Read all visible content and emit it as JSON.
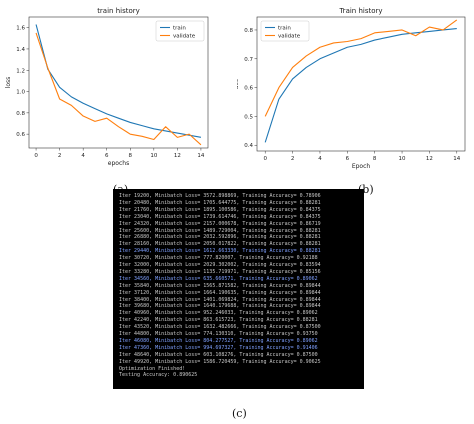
{
  "panels": {
    "a": "(a)",
    "b": "(b)",
    "c": "(c)"
  },
  "colors": {
    "train": "#1f77b4",
    "validate": "#ff7f0e",
    "terminal_bg": "#000000",
    "terminal_text": "#c8c8c8",
    "terminal_highlight": "#7fa0ff"
  },
  "chart_data": [
    {
      "type": "line",
      "title": "train history",
      "xlabel": "epochs",
      "ylabel": "loss",
      "xlim": [
        -0.6,
        14.6
      ],
      "ylim": [
        0.47,
        1.7
      ],
      "xticks": [
        0,
        2,
        4,
        6,
        8,
        10,
        12,
        14
      ],
      "yticks": [
        0.6,
        0.8,
        1.0,
        1.2,
        1.4,
        1.6
      ],
      "ytick_labels": [
        "0.6",
        "0.8",
        "1.0",
        "1.2",
        "1.4",
        "1.6"
      ],
      "legend_position": "top-right",
      "x": [
        0,
        1,
        2,
        3,
        4,
        5,
        6,
        7,
        8,
        9,
        10,
        11,
        12,
        13,
        14
      ],
      "series": [
        {
          "name": "train",
          "values": [
            1.63,
            1.21,
            1.04,
            0.95,
            0.89,
            0.84,
            0.79,
            0.75,
            0.71,
            0.68,
            0.65,
            0.63,
            0.61,
            0.59,
            0.57
          ]
        },
        {
          "name": "validate",
          "values": [
            1.55,
            1.22,
            0.93,
            0.87,
            0.77,
            0.72,
            0.75,
            0.67,
            0.6,
            0.58,
            0.55,
            0.67,
            0.57,
            0.6,
            0.5
          ]
        }
      ]
    },
    {
      "type": "line",
      "title": "Train history",
      "xlabel": "Epoch",
      "ylabel": "acc",
      "xlim": [
        -0.6,
        14.6
      ],
      "ylim": [
        0.38,
        0.845
      ],
      "xticks": [
        0,
        2,
        4,
        6,
        8,
        10,
        12,
        14
      ],
      "yticks": [
        0.4,
        0.5,
        0.6,
        0.7,
        0.8
      ],
      "ytick_labels": [
        "0.4",
        "0.5",
        "0.6",
        "0.7",
        "0.8"
      ],
      "legend_position": "top-left",
      "x": [
        0,
        1,
        2,
        3,
        4,
        5,
        6,
        7,
        8,
        9,
        10,
        11,
        12,
        13,
        14
      ],
      "series": [
        {
          "name": "train",
          "values": [
            0.41,
            0.56,
            0.63,
            0.67,
            0.7,
            0.72,
            0.74,
            0.75,
            0.765,
            0.775,
            0.785,
            0.79,
            0.795,
            0.8,
            0.805
          ]
        },
        {
          "name": "validate",
          "values": [
            0.5,
            0.6,
            0.67,
            0.71,
            0.74,
            0.755,
            0.76,
            0.77,
            0.79,
            0.795,
            0.8,
            0.78,
            0.81,
            0.8,
            0.835
          ]
        }
      ]
    }
  ],
  "terminal": {
    "lines": [
      "Iter 19200, Minibatch Loss= 3572.898869, Training Accuracy= 0.78906",
      "Iter 20480, Minibatch Loss= 1705.644775, Training Accuracy= 0.88281",
      "Iter 21760, Minibatch Loss= 1895.100586, Training Accuracy= 0.84375",
      "Iter 23040, Minibatch Loss= 1739.614746, Training Accuracy= 0.84375",
      "Iter 24320, Minibatch Loss= 2157.000678, Training Accuracy= 0.86719",
      "Iter 25600, Minibatch Loss= 1489.729004, Training Accuracy= 0.88281",
      "Iter 26880, Minibatch Loss= 2032.592896, Training Accuracy= 0.88281",
      "Iter 28160, Minibatch Loss= 2050.017822, Training Accuracy= 0.88281",
      "Iter 29440, Minibatch Loss= 1612.663330, Training Accuracy= 0.88281",
      "Iter 30720, Minibatch Loss= 777.820007, Training Accuracy= 0.92188",
      "Iter 32000, Minibatch Loss= 2029.302002, Training Accuracy= 0.83594",
      "Iter 33280, Minibatch Loss= 1135.719971, Training Accuracy= 0.85156",
      "Iter 34560, Minibatch Loss= 635.660571, Training Accuracy= 0.89062",
      "Iter 35840, Minibatch Loss= 1565.871582, Training Accuracy= 0.89844",
      "Iter 37120, Minibatch Loss= 1664.190635, Training Accuracy= 0.89844",
      "Iter 38400, Minibatch Loss= 1401.069824, Training Accuracy= 0.89844",
      "Iter 39680, Minibatch Loss= 1640.179688, Training Accuracy= 0.89844",
      "Iter 40960, Minibatch Loss= 952.246033, Training Accuracy= 0.89062",
      "Iter 42240, Minibatch Loss= 863.615723, Training Accuracy= 0.88281",
      "Iter 43520, Minibatch Loss= 1632.482666, Training Accuracy= 0.87500",
      "Iter 44800, Minibatch Loss= 774.130310, Training Accuracy= 0.93750",
      "Iter 46080, Minibatch Loss= 804.277527, Training Accuracy= 0.89062",
      "Iter 47360, Minibatch Loss= 994.697327, Training Accuracy= 0.91406",
      "Iter 48640, Minibatch Loss= 603.108276, Training Accuracy= 0.87500",
      "Iter 49920, Minibatch Loss= 1586.720459, Training Accuracy= 0.90625",
      "Optimization Finished!",
      "Testing Accuracy: 0.890625"
    ],
    "highlight_lines": [
      8,
      12,
      21,
      22
    ]
  }
}
